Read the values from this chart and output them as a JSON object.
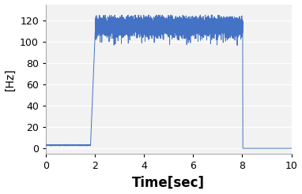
{
  "title": "",
  "xlabel": "Time[sec]",
  "ylabel": "[Hz]",
  "xlim": [
    0,
    10
  ],
  "ylim": [
    -5,
    135
  ],
  "yticks": [
    0,
    20,
    40,
    60,
    80,
    100,
    120
  ],
  "xticks": [
    0,
    2,
    4,
    6,
    8,
    10
  ],
  "line_color": "#4472C4",
  "line_width": 0.7,
  "background_color": "#ffffff",
  "plot_bg_color": "#f2f2f2",
  "grid_color": "#ffffff",
  "low_value": 3.0,
  "high_value": 115.0,
  "noise_std": 3.5,
  "rise_start": 1.82,
  "rise_end": 2.02,
  "fall_time": 8.02,
  "sample_rate": 2000,
  "duration": 10.0,
  "xlabel_fontsize": 12,
  "ylabel_fontsize": 10,
  "tick_fontsize": 9
}
